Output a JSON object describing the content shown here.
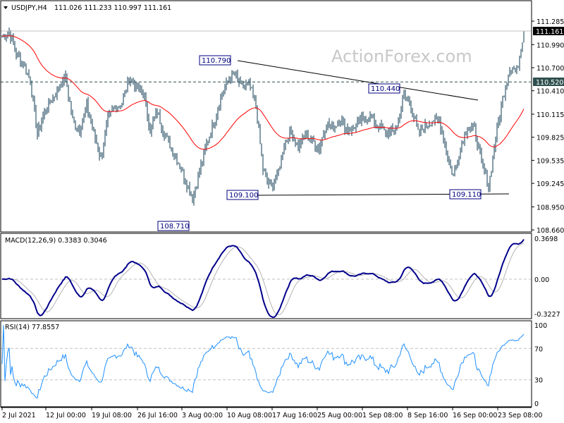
{
  "header": {
    "symbol": "USDJPY,H4",
    "ohlc": "111.026 111.233 110.997 111.161"
  },
  "watermark": "ActionForex.com",
  "colors": {
    "bars": "#0d3a52",
    "ma": "#ff0000",
    "macd": "#00008b",
    "signal": "#b4b4b4",
    "rsi": "#1e90ff",
    "label_border": "#00007f",
    "current_price_bg": "#000000",
    "level_bg": "#2f4f4f"
  },
  "chart_data": [
    {
      "type": "bar",
      "title": "USDJPY,H4",
      "ylim": [
        108.66,
        111.285
      ],
      "y_ticks": [
        "111.285",
        "110.990",
        "110.700",
        "110.410",
        "110.115",
        "109.825",
        "109.535",
        "109.245",
        "108.950",
        "108.660"
      ],
      "x_ticks": [
        "2 Jul 2021",
        "12 Jul 00:00",
        "19 Jul 08:00",
        "26 Jul 16:00",
        "3 Aug 00:00",
        "10 Aug 08:00",
        "17 Aug 16:00",
        "25 Aug 00:00",
        "1 Sep 08:00",
        "8 Sep 16:00",
        "16 Sep 00:00",
        "23 Sep 08:00"
      ],
      "approx_closes_every_5_bars": [
        111.1,
        111.15,
        110.88,
        110.75,
        110.55,
        109.85,
        110.15,
        110.3,
        110.45,
        110.58,
        110.04,
        109.91,
        110.22,
        109.87,
        109.56,
        110.05,
        110.2,
        110.25,
        110.58,
        110.45,
        110.4,
        109.91,
        110.15,
        109.87,
        109.69,
        109.51,
        109.29,
        109.05,
        109.4,
        109.75,
        110.0,
        110.31,
        110.53,
        110.62,
        110.44,
        110.49,
        110.22,
        109.42,
        109.2,
        109.33,
        109.73,
        109.91,
        109.69,
        109.87,
        109.78,
        109.69,
        110.0,
        109.96,
        110.04,
        109.91,
        109.96,
        110.04,
        110.09,
        110.0,
        109.91,
        109.87,
        109.96,
        110.35,
        110.22,
        109.87,
        109.96,
        110.04,
        110.04,
        109.64,
        109.33,
        109.69,
        109.96,
        109.91,
        109.51,
        109.2,
        109.82,
        110.31,
        110.71,
        110.66,
        111.161
      ],
      "current_price": "111.161",
      "level_line": "110.520",
      "annotations": [
        "110.790",
        "109.100",
        "108.710",
        "110.440",
        "109.110"
      ],
      "moving_average": "red line"
    },
    {
      "type": "line",
      "title": "MACD(12,26,9) 0.3383 0.3046",
      "y_ticks": [
        "0.3698",
        "0.00",
        "-0.3227"
      ],
      "series": [
        {
          "name": "MACD",
          "last": 0.3383
        },
        {
          "name": "Signal",
          "last": 0.3046
        }
      ]
    },
    {
      "type": "line",
      "title": "RSI(14) 77.8557",
      "y_ticks": [
        "100",
        "70",
        "30",
        "0"
      ],
      "levels": [
        70,
        30
      ],
      "last": 77.8557
    }
  ]
}
